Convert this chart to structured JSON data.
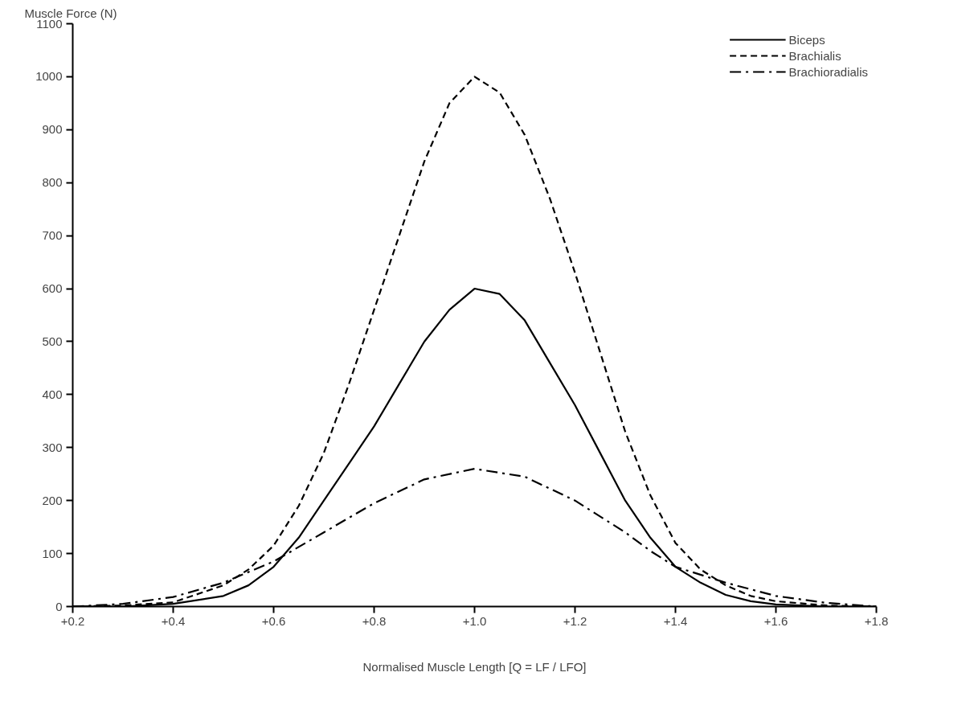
{
  "chart_data": {
    "type": "line",
    "ylabel": "Muscle Force (N)",
    "xlabel": "Normalised Muscle Length [Q = LF / LFO]",
    "xlim": [
      0.2,
      1.8
    ],
    "ylim": [
      0,
      1100
    ],
    "xticks": [
      {
        "value": 0.2,
        "label": "+0.2"
      },
      {
        "value": 0.4,
        "label": "+0.4"
      },
      {
        "value": 0.6,
        "label": "+0.6"
      },
      {
        "value": 0.8,
        "label": "+0.8"
      },
      {
        "value": 1.0,
        "label": "+1.0"
      },
      {
        "value": 1.2,
        "label": "+1.2"
      },
      {
        "value": 1.4,
        "label": "+1.4"
      },
      {
        "value": 1.6,
        "label": "+1.6"
      },
      {
        "value": 1.8,
        "label": "+1.8"
      }
    ],
    "yticks": [
      0,
      100,
      200,
      300,
      400,
      500,
      600,
      700,
      800,
      900,
      1000,
      1100
    ],
    "grid": false,
    "legend": "top right",
    "marker": "none",
    "series": [
      {
        "name": "Biceps",
        "color": "#000000",
        "line_style": "solid",
        "x": [
          0.2,
          0.3,
          0.4,
          0.5,
          0.55,
          0.6,
          0.65,
          0.7,
          0.75,
          0.8,
          0.85,
          0.9,
          0.95,
          1.0,
          1.05,
          1.1,
          1.15,
          1.2,
          1.25,
          1.3,
          1.35,
          1.4,
          1.45,
          1.5,
          1.55,
          1.6,
          1.7,
          1.8
        ],
        "values": [
          0,
          0,
          5,
          20,
          40,
          75,
          130,
          200,
          270,
          340,
          420,
          500,
          560,
          600,
          590,
          540,
          460,
          380,
          290,
          200,
          130,
          75,
          45,
          22,
          10,
          4,
          0,
          0
        ]
      },
      {
        "name": "Brachialis",
        "color": "#000000",
        "line_style": "dashed",
        "x": [
          0.2,
          0.3,
          0.4,
          0.5,
          0.55,
          0.6,
          0.65,
          0.7,
          0.75,
          0.8,
          0.85,
          0.9,
          0.95,
          1.0,
          1.05,
          1.1,
          1.15,
          1.2,
          1.25,
          1.3,
          1.35,
          1.4,
          1.45,
          1.5,
          1.55,
          1.6,
          1.7,
          1.8
        ],
        "values": [
          0,
          2,
          8,
          40,
          70,
          115,
          190,
          290,
          420,
          560,
          700,
          840,
          950,
          1000,
          970,
          890,
          770,
          630,
          480,
          330,
          210,
          120,
          70,
          40,
          20,
          10,
          2,
          0
        ]
      },
      {
        "name": "Brachioradialis",
        "color": "#000000",
        "line_style": "dashdot",
        "x": [
          0.2,
          0.3,
          0.4,
          0.5,
          0.6,
          0.7,
          0.8,
          0.9,
          1.0,
          1.1,
          1.2,
          1.3,
          1.35,
          1.4,
          1.5,
          1.6,
          1.7,
          1.8
        ],
        "values": [
          0,
          5,
          18,
          45,
          85,
          140,
          195,
          240,
          260,
          245,
          200,
          140,
          105,
          75,
          45,
          20,
          7,
          0
        ]
      }
    ]
  }
}
